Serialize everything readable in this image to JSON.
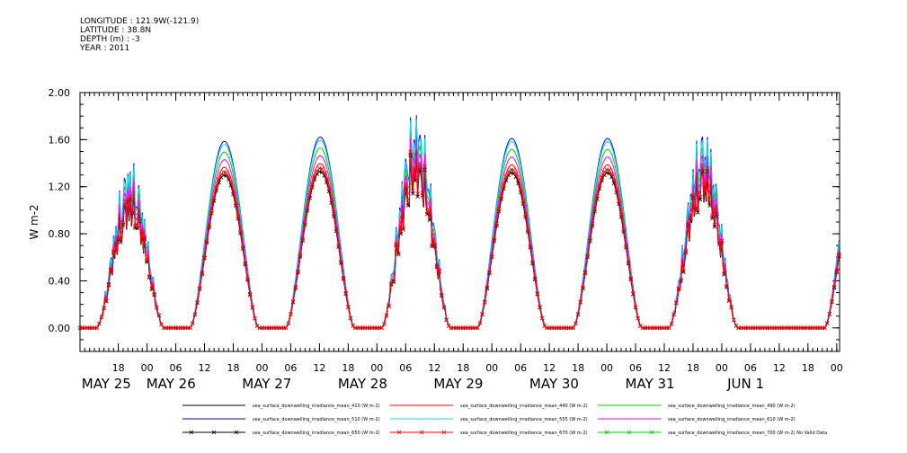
{
  "meta": {
    "longitude": "LONGITUDE : 121.9W(-121.9)",
    "latitude": "LATITUDE : 38.8N",
    "depth": "DEPTH (m) : -3",
    "year": "YEAR : 2011"
  },
  "chart_data": {
    "type": "line",
    "title": "",
    "xlabel": "",
    "ylabel": "W m-2",
    "ylim": [
      -0.2,
      2.0
    ],
    "xlim_hours": [
      10,
      168.6
    ],
    "yticks": [
      0.0,
      0.4,
      0.8,
      1.2,
      1.6,
      2.0
    ],
    "ytick_labels": [
      "0.00",
      "0.40",
      "0.80",
      "1.20",
      "1.60",
      "2.00"
    ],
    "xtick_hours": [
      18,
      24,
      30,
      36,
      42,
      48,
      54,
      60,
      66,
      72,
      78,
      84,
      90,
      96,
      102,
      108,
      114,
      120,
      126,
      132,
      138,
      144,
      150,
      156,
      162,
      168
    ],
    "xtick_labels": [
      "18",
      "00",
      "06",
      "12",
      "18",
      "00",
      "06",
      "12",
      "18",
      "00",
      "06",
      "12",
      "18",
      "00",
      "06",
      "12",
      "18",
      "00",
      "06",
      "12",
      "18",
      "00",
      "06",
      "12",
      "18",
      "00"
    ],
    "date_labels": [
      {
        "text": "MAY 25",
        "hour": 15.5
      },
      {
        "text": "MAY 26",
        "hour": 29
      },
      {
        "text": "MAY 27",
        "hour": 49
      },
      {
        "text": "MAY 28",
        "hour": 69
      },
      {
        "text": "MAY 29",
        "hour": 89
      },
      {
        "text": "MAY 30",
        "hour": 109
      },
      {
        "text": "MAY 31",
        "hour": 129
      },
      {
        "text": "JUN  1",
        "hour": 149
      }
    ],
    "x_axis_note": "x values are hours since 00:00 MAY 25 2011 (tick labels show hour of day)",
    "grid": false,
    "legend_position": "bottom",
    "days": [
      {
        "label": "MAY 25",
        "sunrise": 13.5,
        "sunset": 27.5,
        "amplitude": 1.0,
        "noisy": true
      },
      {
        "label": "MAY 26",
        "sunrise": 33.0,
        "sunset": 47.3,
        "amplitude": 1.3,
        "noisy": false
      },
      {
        "label": "MAY 27",
        "sunrise": 53.0,
        "sunset": 67.3,
        "amplitude": 1.33,
        "noisy": false
      },
      {
        "label": "MAY 28",
        "sunrise": 73.0,
        "sunset": 87.3,
        "amplitude": 1.3,
        "noisy": true
      },
      {
        "label": "MAY 29",
        "sunrise": 93.0,
        "sunset": 107.3,
        "amplitude": 1.32,
        "noisy": false
      },
      {
        "label": "MAY 30",
        "sunrise": 113.0,
        "sunset": 127.3,
        "amplitude": 1.32,
        "noisy": false
      },
      {
        "label": "MAY 31",
        "sunrise": 133.0,
        "sunset": 147.3,
        "amplitude": 1.2,
        "noisy": true
      },
      {
        "label": "JUN 1",
        "sunrise": 165.5,
        "sunset": 179.5,
        "amplitude": 1.3,
        "noisy": false
      }
    ],
    "series": [
      {
        "name": "sea_surface_downwelling_irradiance_mean_410 (W m-2)",
        "color": "#000000",
        "scale": 1.0,
        "marker": "none"
      },
      {
        "name": "sea_surface_downwelling_irradiance_mean_440 (W m-2)",
        "color": "#ff0000",
        "scale": 1.05,
        "marker": "none"
      },
      {
        "name": "sea_surface_downwelling_irradiance_mean_490 (W m-2)",
        "color": "#00cc00",
        "scale": 1.15,
        "marker": "none"
      },
      {
        "name": "sea_surface_downwelling_irradiance_mean_510 (W m-2)",
        "color": "#0000ff",
        "scale": 1.22,
        "marker": "none"
      },
      {
        "name": "sea_surface_downwelling_irradiance_mean_555 (W m-2)",
        "color": "#00e0e0",
        "scale": 1.2,
        "marker": "none"
      },
      {
        "name": "sea_surface_downwelling_irradiance_mean_610 (W m-2)",
        "color": "#ff00ff",
        "scale": 1.1,
        "marker": "none"
      },
      {
        "name": "sea_surface_downwelling_irradiance_mean_650 (W m-2)",
        "color": "#000000",
        "scale": 1.0,
        "marker": "x"
      },
      {
        "name": "sea_surface_downwelling_irradiance_mean_670 (W m-2)",
        "color": "#ff0000",
        "scale": 1.02,
        "marker": "x"
      },
      {
        "name": "sea_surface_downwelling_irradiance_mean_700 (W m-2) No Valid Data",
        "color": "#00cc00",
        "scale": 0,
        "marker": "x"
      }
    ]
  }
}
